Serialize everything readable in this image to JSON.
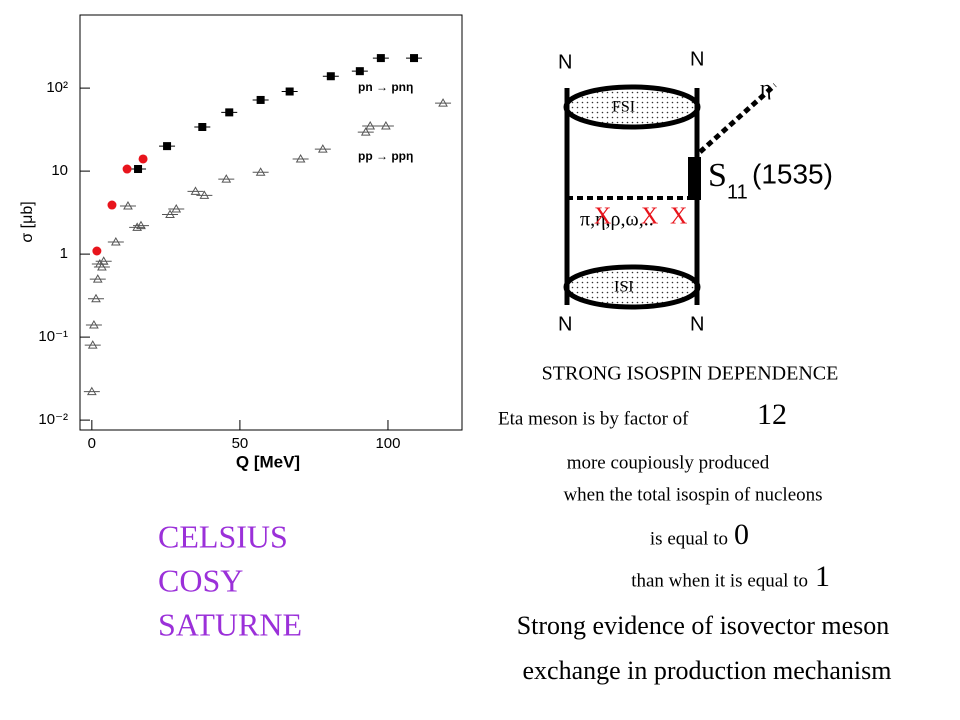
{
  "chart_data": {
    "type": "scatter",
    "xlabel": "Q [MeV]",
    "ylabel": "σ [μb]",
    "xlim": [
      -4,
      125
    ],
    "ylim": [
      0.0076,
      760
    ],
    "log_y": true,
    "xticks": [
      0,
      50,
      100
    ],
    "yticks": [
      {
        "value": 0.01,
        "label": "10⁻²"
      },
      {
        "value": 0.1,
        "label": "10⁻¹"
      },
      1,
      10,
      {
        "value": 100,
        "label": "10²"
      }
    ],
    "series": [
      {
        "name": "pn → pnη",
        "color": "#000000",
        "marker": "square",
        "x": [
          15.6,
          25.4,
          37.3,
          46.4,
          57,
          66.8,
          80.7,
          90.5,
          97.6,
          108.8
        ],
        "values": [
          10.6,
          20,
          34,
          51,
          72,
          91,
          139,
          160,
          230,
          230
        ]
      },
      {
        "name": "pp → ppη",
        "color": "#555555",
        "marker": "triangle",
        "x": [
          0,
          0.3,
          0.7,
          1.4,
          2,
          2.7,
          3.4,
          4,
          8.1,
          12.2,
          15.3,
          16.6,
          26.4,
          28.5,
          35,
          38,
          45.4,
          57,
          70.5,
          78,
          92.5,
          94,
          99.3,
          118.6
        ],
        "values": [
          0.022,
          0.08,
          0.14,
          0.29,
          0.5,
          0.76,
          0.7,
          0.82,
          1.4,
          3.8,
          2.1,
          2.2,
          3.0,
          3.5,
          5.7,
          5.1,
          8.0,
          9.7,
          14,
          18.4,
          29.5,
          35,
          35,
          66
        ]
      },
      {
        "color": "#e8141c",
        "marker": "circle",
        "x": [
          1.7,
          6.8,
          11.9,
          17.3
        ],
        "values": [
          1.09,
          3.9,
          10.6,
          14
        ]
      }
    ]
  },
  "diagram": {
    "top_left": "N",
    "top_right": "N",
    "bottom_left": "N",
    "bottom_right": "N",
    "eta": "η",
    "fsi": "FSI",
    "isi": "ISI",
    "resonance": "S",
    "resonance_sub": "11",
    "resonance_mass": "(1535)",
    "exchange": "π,η,ρ,ω,..",
    "crosses": [
      "X",
      "X",
      "X"
    ]
  },
  "text": {
    "heading": "STRONG ISOSPIN DEPENDENCE",
    "line1": "Eta meson is by factor  of",
    "factor": "12",
    "line2": "more coupiously produced",
    "line3": "when the total isospin of nucleons",
    "line4": "is equal to",
    "isospin_a": "0",
    "line5": "than when it is equal to",
    "isospin_b": "1",
    "conclusion1": "Strong evidence of  isovector meson",
    "conclusion2": "exchange in  production mechanism"
  },
  "facilities": [
    "CELSIUS",
    "COSY",
    "SATURNE"
  ]
}
